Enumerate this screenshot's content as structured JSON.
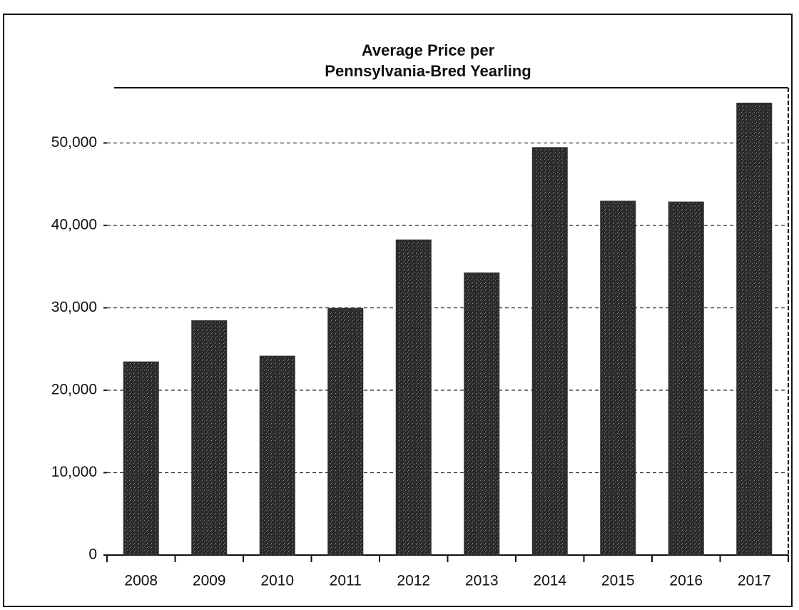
{
  "chart_data": {
    "type": "bar",
    "title": [
      "Average Price per",
      "Pennsylvania-Bred Yearling"
    ],
    "categories": [
      "2008",
      "2009",
      "2010",
      "2011",
      "2012",
      "2013",
      "2014",
      "2015",
      "2016",
      "2017"
    ],
    "values": [
      23400,
      28400,
      24100,
      29900,
      38200,
      34200,
      49400,
      42900,
      42800,
      54800
    ],
    "color": "#2e2e2e",
    "ylim": [
      0,
      56700
    ],
    "yticks": [
      0,
      {
        "value": 10000,
        "label": "10,000"
      },
      {
        "value": 20000,
        "label": "20,000"
      },
      {
        "value": 30000,
        "label": "30,000"
      },
      {
        "value": 40000,
        "label": "40,000"
      },
      {
        "value": 50000,
        "label": "50,000"
      }
    ],
    "grid": true
  }
}
